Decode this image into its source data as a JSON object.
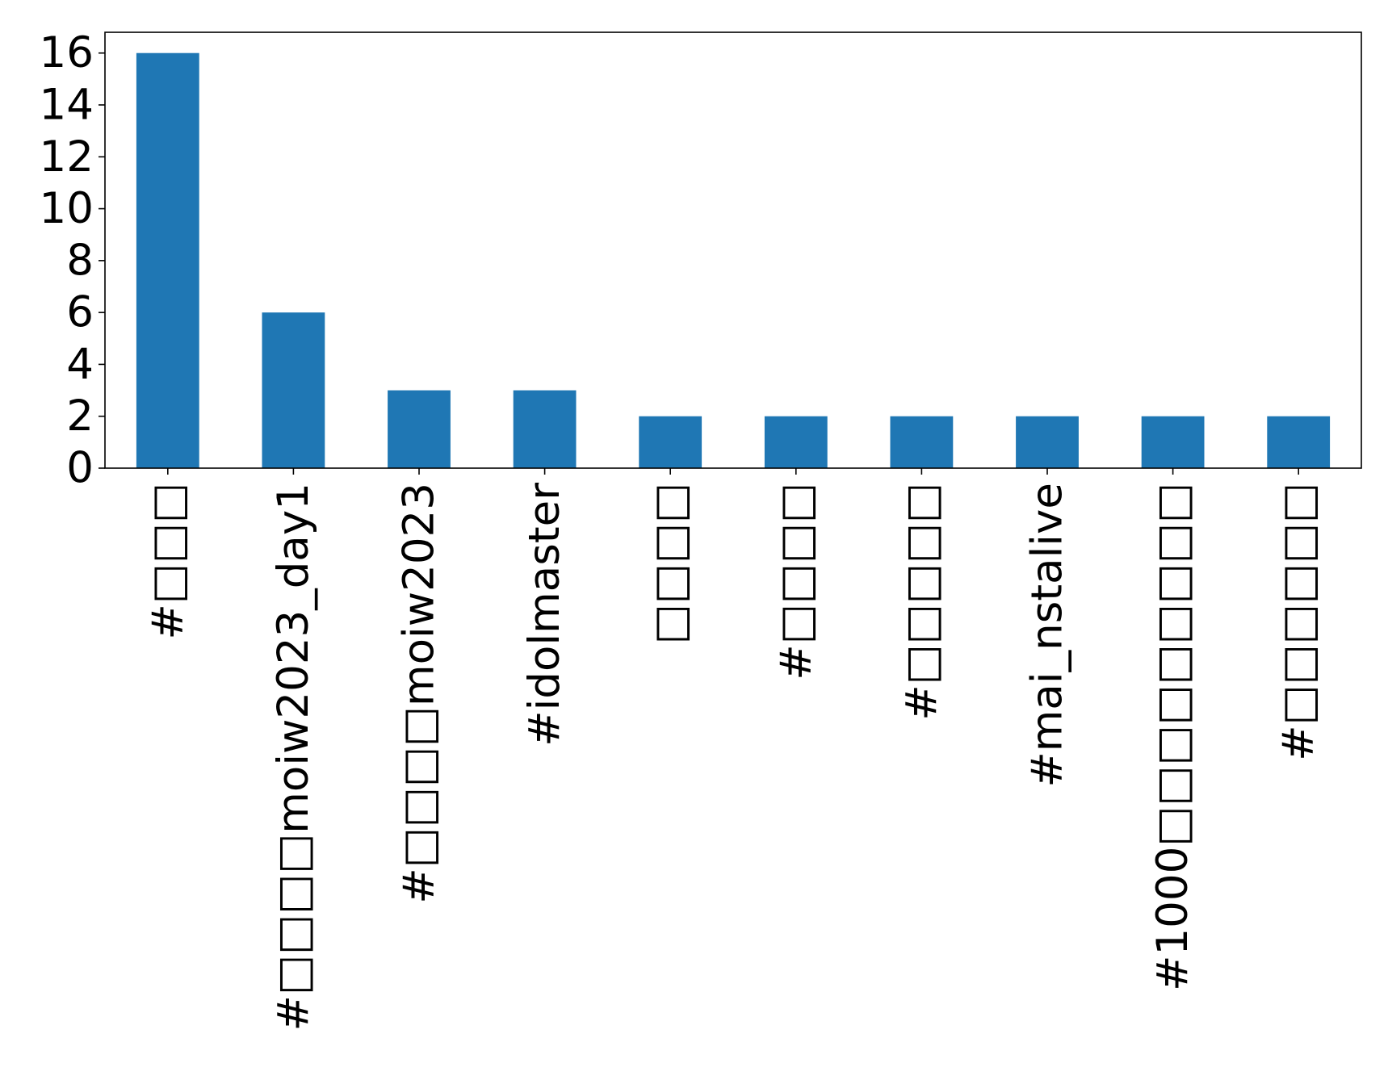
{
  "chart_data": {
    "type": "bar",
    "categories": [
      "#□□□",
      "#□□□□moiw2023_day1",
      "#□□□□moiw2023",
      "#idolmaster",
      "□□□□",
      "#□□□□",
      "#□□□□□",
      "#mai_nstalive",
      "#1000□□□□□□□□□",
      "#□□□□□□"
    ],
    "values": [
      16,
      6,
      3,
      3,
      2,
      2,
      2,
      2,
      2,
      2
    ],
    "yticks": [
      "0",
      "2",
      "4",
      "6",
      "8",
      "10",
      "12",
      "14",
      "16"
    ],
    "ylim": [
      0,
      16.8
    ],
    "grid": false,
    "bar_color": "#1f77b4",
    "title": "",
    "xlabel": "",
    "ylabel": ""
  }
}
